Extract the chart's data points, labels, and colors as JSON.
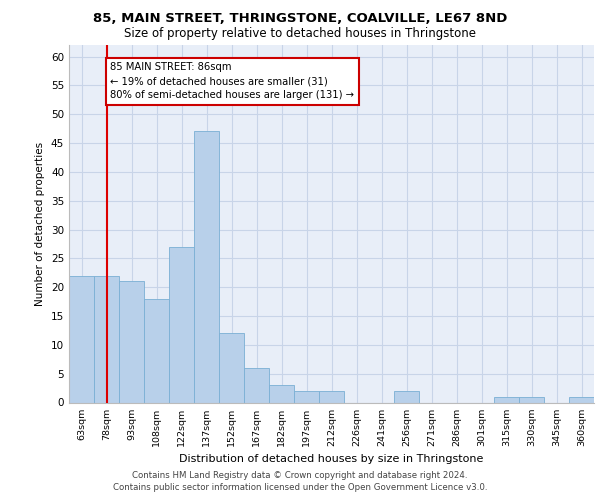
{
  "title_line1": "85, MAIN STREET, THRINGSTONE, COALVILLE, LE67 8ND",
  "title_line2": "Size of property relative to detached houses in Thringstone",
  "xlabel": "Distribution of detached houses by size in Thringstone",
  "ylabel": "Number of detached properties",
  "categories": [
    "63sqm",
    "78sqm",
    "93sqm",
    "108sqm",
    "122sqm",
    "137sqm",
    "152sqm",
    "167sqm",
    "182sqm",
    "197sqm",
    "212sqm",
    "226sqm",
    "241sqm",
    "256sqm",
    "271sqm",
    "286sqm",
    "301sqm",
    "315sqm",
    "330sqm",
    "345sqm",
    "360sqm"
  ],
  "values": [
    22,
    22,
    21,
    18,
    27,
    47,
    12,
    6,
    3,
    2,
    2,
    0,
    0,
    2,
    0,
    0,
    0,
    1,
    1,
    0,
    1
  ],
  "bar_color": "#b8d0ea",
  "bar_edge_color": "#7aafd4",
  "grid_color": "#c8d4e8",
  "background_color": "#e8eef8",
  "vline_x": 1,
  "vline_color": "#dd0000",
  "annotation_text": "85 MAIN STREET: 86sqm\n← 19% of detached houses are smaller (31)\n80% of semi-detached houses are larger (131) →",
  "annotation_box_color": "#ffffff",
  "annotation_box_edge_color": "#cc0000",
  "ylim": [
    0,
    62
  ],
  "yticks": [
    0,
    5,
    10,
    15,
    20,
    25,
    30,
    35,
    40,
    45,
    50,
    55,
    60
  ],
  "footer_line1": "Contains HM Land Registry data © Crown copyright and database right 2024.",
  "footer_line2": "Contains public sector information licensed under the Open Government Licence v3.0."
}
